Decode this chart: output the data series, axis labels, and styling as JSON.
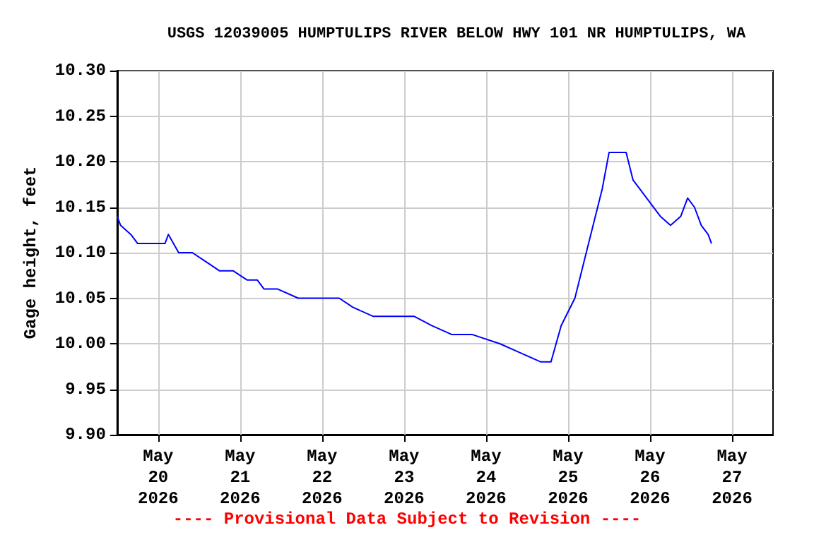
{
  "chart_data": {
    "type": "line",
    "title": "USGS 12039005 HUMPTULIPS RIVER BELOW HWY 101 NR HUMPTULIPS, WA",
    "ylabel": "Gage height, feet",
    "annotations": [
      "---- Provisional Data Subject to Revision ----"
    ],
    "x": [
      "2026-05-19T12:00",
      "2026-05-19T13:00",
      "2026-05-19T16:00",
      "2026-05-19T18:00",
      "2026-05-19T22:00",
      "2026-05-20T02:00",
      "2026-05-20T03:00",
      "2026-05-20T06:00",
      "2026-05-20T10:00",
      "2026-05-20T14:00",
      "2026-05-20T18:00",
      "2026-05-20T22:00",
      "2026-05-21T02:00",
      "2026-05-21T05:00",
      "2026-05-21T07:00",
      "2026-05-21T11:00",
      "2026-05-21T17:00",
      "2026-05-21T23:00",
      "2026-05-22T05:00",
      "2026-05-22T09:00",
      "2026-05-22T15:00",
      "2026-05-22T21:00",
      "2026-05-23T03:00",
      "2026-05-23T08:00",
      "2026-05-23T14:00",
      "2026-05-23T20:00",
      "2026-05-24T04:00",
      "2026-05-24T10:00",
      "2026-05-24T16:00",
      "2026-05-24T19:00",
      "2026-05-24T22:00",
      "2026-05-25T02:00",
      "2026-05-25T06:00",
      "2026-05-25T10:00",
      "2026-05-25T12:00",
      "2026-05-25T17:00",
      "2026-05-25T19:00",
      "2026-05-25T23:00",
      "2026-05-26T03:00",
      "2026-05-26T06:00",
      "2026-05-26T09:00",
      "2026-05-26T11:00",
      "2026-05-26T13:00",
      "2026-05-26T15:00",
      "2026-05-26T17:00",
      "2026-05-26T18:00"
    ],
    "series": [
      {
        "color": "#0000ff",
        "values": [
          10.14,
          10.13,
          10.12,
          10.11,
          10.11,
          10.11,
          10.12,
          10.1,
          10.1,
          10.09,
          10.08,
          10.08,
          10.07,
          10.07,
          10.06,
          10.06,
          10.05,
          10.05,
          10.05,
          10.04,
          10.03,
          10.03,
          10.03,
          10.02,
          10.01,
          10.01,
          10.0,
          9.99,
          9.98,
          9.98,
          10.02,
          10.05,
          10.11,
          10.17,
          10.21,
          10.21,
          10.18,
          10.16,
          10.14,
          10.13,
          10.14,
          10.16,
          10.15,
          10.13,
          10.12,
          10.11
        ]
      }
    ],
    "xlim": [
      "2026-05-19T12:00",
      "2026-05-27T12:00"
    ],
    "xticks": [
      {
        "value": "2026-05-20",
        "label": "May\n20\n2026"
      },
      {
        "value": "2026-05-21",
        "label": "May\n21\n2026"
      },
      {
        "value": "2026-05-22",
        "label": "May\n22\n2026"
      },
      {
        "value": "2026-05-23",
        "label": "May\n23\n2026"
      },
      {
        "value": "2026-05-24",
        "label": "May\n24\n2026"
      },
      {
        "value": "2026-05-25",
        "label": "May\n25\n2026"
      },
      {
        "value": "2026-05-26",
        "label": "May\n26\n2026"
      },
      {
        "value": "2026-05-27",
        "label": "May\n27\n2026"
      }
    ],
    "ylim": [
      9.9,
      10.3
    ],
    "yticks": [
      {
        "value": 9.9,
        "label": "9.90"
      },
      {
        "value": 9.95,
        "label": "9.95"
      },
      {
        "value": 10.0,
        "label": "10.00"
      },
      {
        "value": 10.05,
        "label": "10.05"
      },
      {
        "value": 10.1,
        "label": "10.10"
      },
      {
        "value": 10.15,
        "label": "10.15"
      },
      {
        "value": 10.2,
        "label": "10.20"
      },
      {
        "value": 10.25,
        "label": "10.25"
      },
      {
        "value": 10.3,
        "label": "10.30"
      }
    ],
    "grid": true
  }
}
